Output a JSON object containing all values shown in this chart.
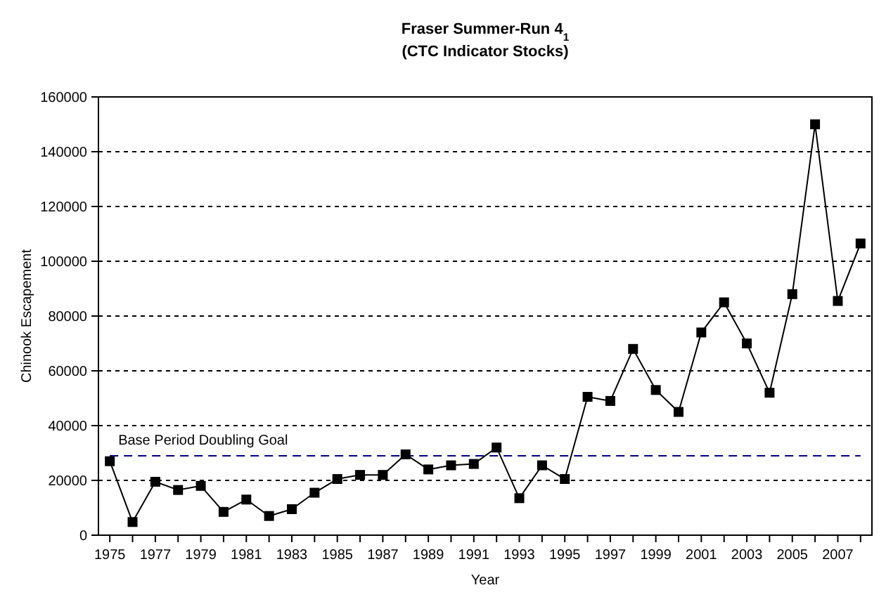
{
  "chart_data": {
    "type": "line",
    "title": "Fraser Summer-Run 4$_{1}$",
    "subtitle": "(CTC Indicator Stocks)",
    "xlabel": "Year",
    "ylabel": "Chinook Escapement",
    "categories": [
      "1975",
      null,
      "1977",
      null,
      "1979",
      null,
      "1981",
      null,
      "1983",
      null,
      "1985",
      null,
      "1987",
      null,
      "1989",
      null,
      "1991",
      null,
      "1993",
      null,
      "1995",
      null,
      "1997",
      null,
      "1999",
      null,
      "2001",
      null,
      "2003",
      null,
      "2005",
      null,
      "2007",
      null
    ],
    "series": [
      {
        "color": "#000000",
        "values": [
          27000,
          4800,
          19500,
          16500,
          18000,
          8500,
          13000,
          7000,
          9500,
          15500,
          20500,
          22000,
          22000,
          29500,
          24000,
          25500,
          26000,
          32000,
          13500,
          25500,
          20500,
          50500,
          49000,
          68000,
          53000,
          45000,
          74000,
          85000,
          70000,
          52000,
          88000,
          150000,
          85500,
          106500
        ]
      }
    ],
    "ylim": [
      0,
      160000
    ],
    "yticks": [
      0,
      20000,
      40000,
      60000,
      80000,
      100000,
      120000,
      140000,
      160000
    ],
    "grid": "y",
    "marker": "square",
    "line_style": "solid",
    "ref_lines": [
      {
        "axis": "y",
        "value": 29000,
        "label": "Base Period Doubling Goal",
        "color": "#000080",
        "line_style": "dashed"
      }
    ]
  }
}
